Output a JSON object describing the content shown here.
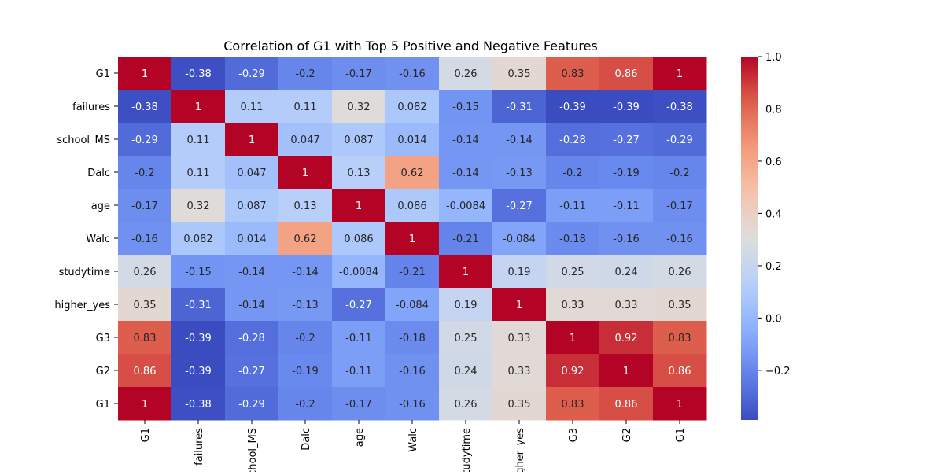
{
  "chart_data": {
    "type": "heatmap",
    "title": "Correlation of G1 with Top 5 Positive and Negative Features",
    "xlabel": "",
    "ylabel": "",
    "row_labels": [
      "G1",
      "failures",
      "school_MS",
      "Dalc",
      "age",
      "Walc",
      "studytime",
      "higher_yes",
      "G3",
      "G2",
      "G1"
    ],
    "col_labels": [
      "G1",
      "failures",
      "school_MS",
      "Dalc",
      "age",
      "Walc",
      "studytime",
      "higher_yes",
      "G3",
      "G2",
      "G1"
    ],
    "values": [
      [
        1,
        -0.38,
        -0.29,
        -0.2,
        -0.17,
        -0.16,
        0.26,
        0.35,
        0.83,
        0.86,
        1
      ],
      [
        -0.38,
        1,
        0.11,
        0.11,
        0.32,
        0.082,
        -0.15,
        -0.31,
        -0.39,
        -0.39,
        -0.38
      ],
      [
        -0.29,
        0.11,
        1,
        0.047,
        0.087,
        0.014,
        -0.14,
        -0.14,
        -0.28,
        -0.27,
        -0.29
      ],
      [
        -0.2,
        0.11,
        0.047,
        1,
        0.13,
        0.62,
        -0.14,
        -0.13,
        -0.2,
        -0.19,
        -0.2
      ],
      [
        -0.17,
        0.32,
        0.087,
        0.13,
        1,
        0.086,
        -0.0084,
        -0.27,
        -0.11,
        -0.11,
        -0.17
      ],
      [
        -0.16,
        0.082,
        0.014,
        0.62,
        0.086,
        1,
        -0.21,
        -0.084,
        -0.18,
        -0.16,
        -0.16
      ],
      [
        0.26,
        -0.15,
        -0.14,
        -0.14,
        -0.0084,
        -0.21,
        1,
        0.19,
        0.25,
        0.24,
        0.26
      ],
      [
        0.35,
        -0.31,
        -0.14,
        -0.13,
        -0.27,
        -0.084,
        0.19,
        1,
        0.33,
        0.33,
        0.35
      ],
      [
        0.83,
        -0.39,
        -0.28,
        -0.2,
        -0.11,
        -0.18,
        0.25,
        0.33,
        1,
        0.92,
        0.83
      ],
      [
        0.86,
        -0.39,
        -0.27,
        -0.19,
        -0.11,
        -0.16,
        0.24,
        0.33,
        0.92,
        1,
        0.86
      ],
      [
        1,
        -0.38,
        -0.29,
        -0.2,
        -0.17,
        -0.16,
        0.26,
        0.35,
        0.83,
        0.86,
        1
      ]
    ],
    "colormap": "coolwarm",
    "vmin": -0.39,
    "vmax": 1.0,
    "colorbar": {
      "ticks": [
        1.0,
        0.8,
        0.6,
        0.4,
        0.2,
        0.0,
        -0.2
      ],
      "tick_labels": [
        "1.0",
        "0.8",
        "0.6",
        "0.4",
        "0.2",
        "0.0",
        "−0.2"
      ]
    },
    "annotations": true,
    "grid": false,
    "legend": "colorbar-right"
  }
}
